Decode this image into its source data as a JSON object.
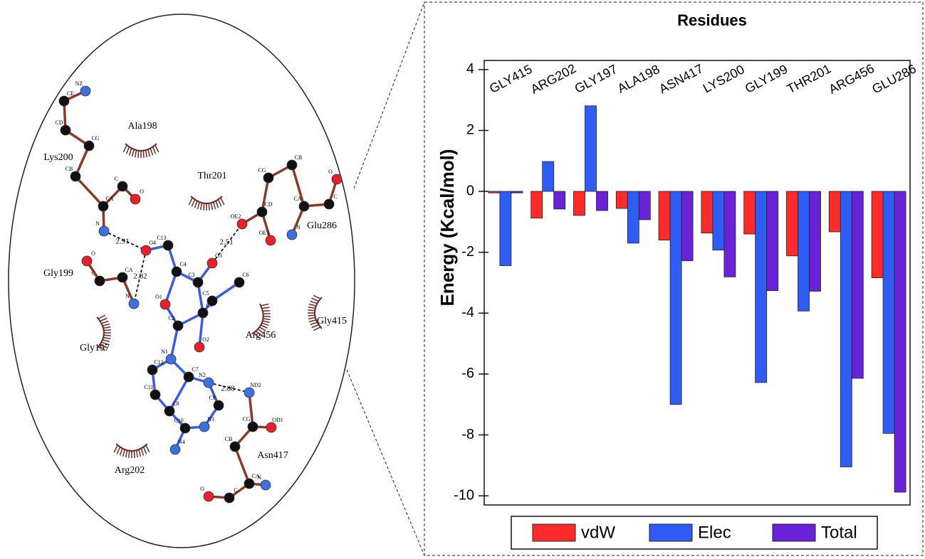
{
  "diagram": {
    "residues": [
      "Ala198",
      "Lys200",
      "Thr201",
      "Glu286",
      "Gly199",
      "Gly197",
      "Gly415",
      "Arg456",
      "Arg202",
      "Asn417"
    ],
    "distances": [
      "2.91",
      "2.82",
      "2.51",
      "2.88"
    ],
    "atoms": [
      "NZ",
      "CE",
      "CD",
      "CG",
      "CB",
      "CA",
      "C",
      "O",
      "N",
      "O4",
      "C13",
      "C4",
      "C3",
      "O3",
      "C5",
      "C6",
      "O1",
      "C1",
      "C2",
      "O2",
      "N1",
      "C12",
      "C11",
      "C7",
      "N2",
      "C8",
      "C10",
      "N3",
      "C9",
      "N4",
      "OE2",
      "CD",
      "CG",
      "CB",
      "CA",
      "C",
      "O",
      "N",
      "OE1",
      "O",
      "C",
      "CA",
      "N",
      "ND2",
      "CG",
      "OD1",
      "CB",
      "CA",
      "N",
      "C",
      "O"
    ]
  },
  "chart_data": {
    "type": "bar",
    "title": "Residues",
    "y_label": "Energy (Kcal/mol)",
    "categories": [
      "GLY415",
      "ARG202",
      "GLY197",
      "ALA198",
      "ASN417",
      "LYS200",
      "GLY199",
      "THR201",
      "ARG456",
      "GLU286"
    ],
    "series": [
      {
        "name": "vdW",
        "color": "#ff2a2a",
        "values": [
          -0.05,
          -0.88,
          -0.79,
          -0.56,
          -1.6,
          -1.37,
          -1.4,
          -2.12,
          -1.33,
          -2.84
        ]
      },
      {
        "name": "Elec",
        "color": "#2e5cf5",
        "values": [
          -2.44,
          0.98,
          2.81,
          -1.7,
          -7.0,
          -1.93,
          -6.28,
          -3.93,
          -9.05,
          -7.95
        ]
      },
      {
        "name": "Total",
        "color": "#6a22d8",
        "values": [
          -0.05,
          -0.58,
          -0.63,
          -0.93,
          -2.28,
          -2.81,
          -3.26,
          -3.28,
          -6.14,
          -9.88
        ]
      }
    ],
    "ylim": [
      -10.3,
      4.3
    ],
    "yticks": [
      -10,
      -8,
      -6,
      -4,
      -2,
      0,
      2,
      4
    ],
    "legend": "bottom"
  }
}
